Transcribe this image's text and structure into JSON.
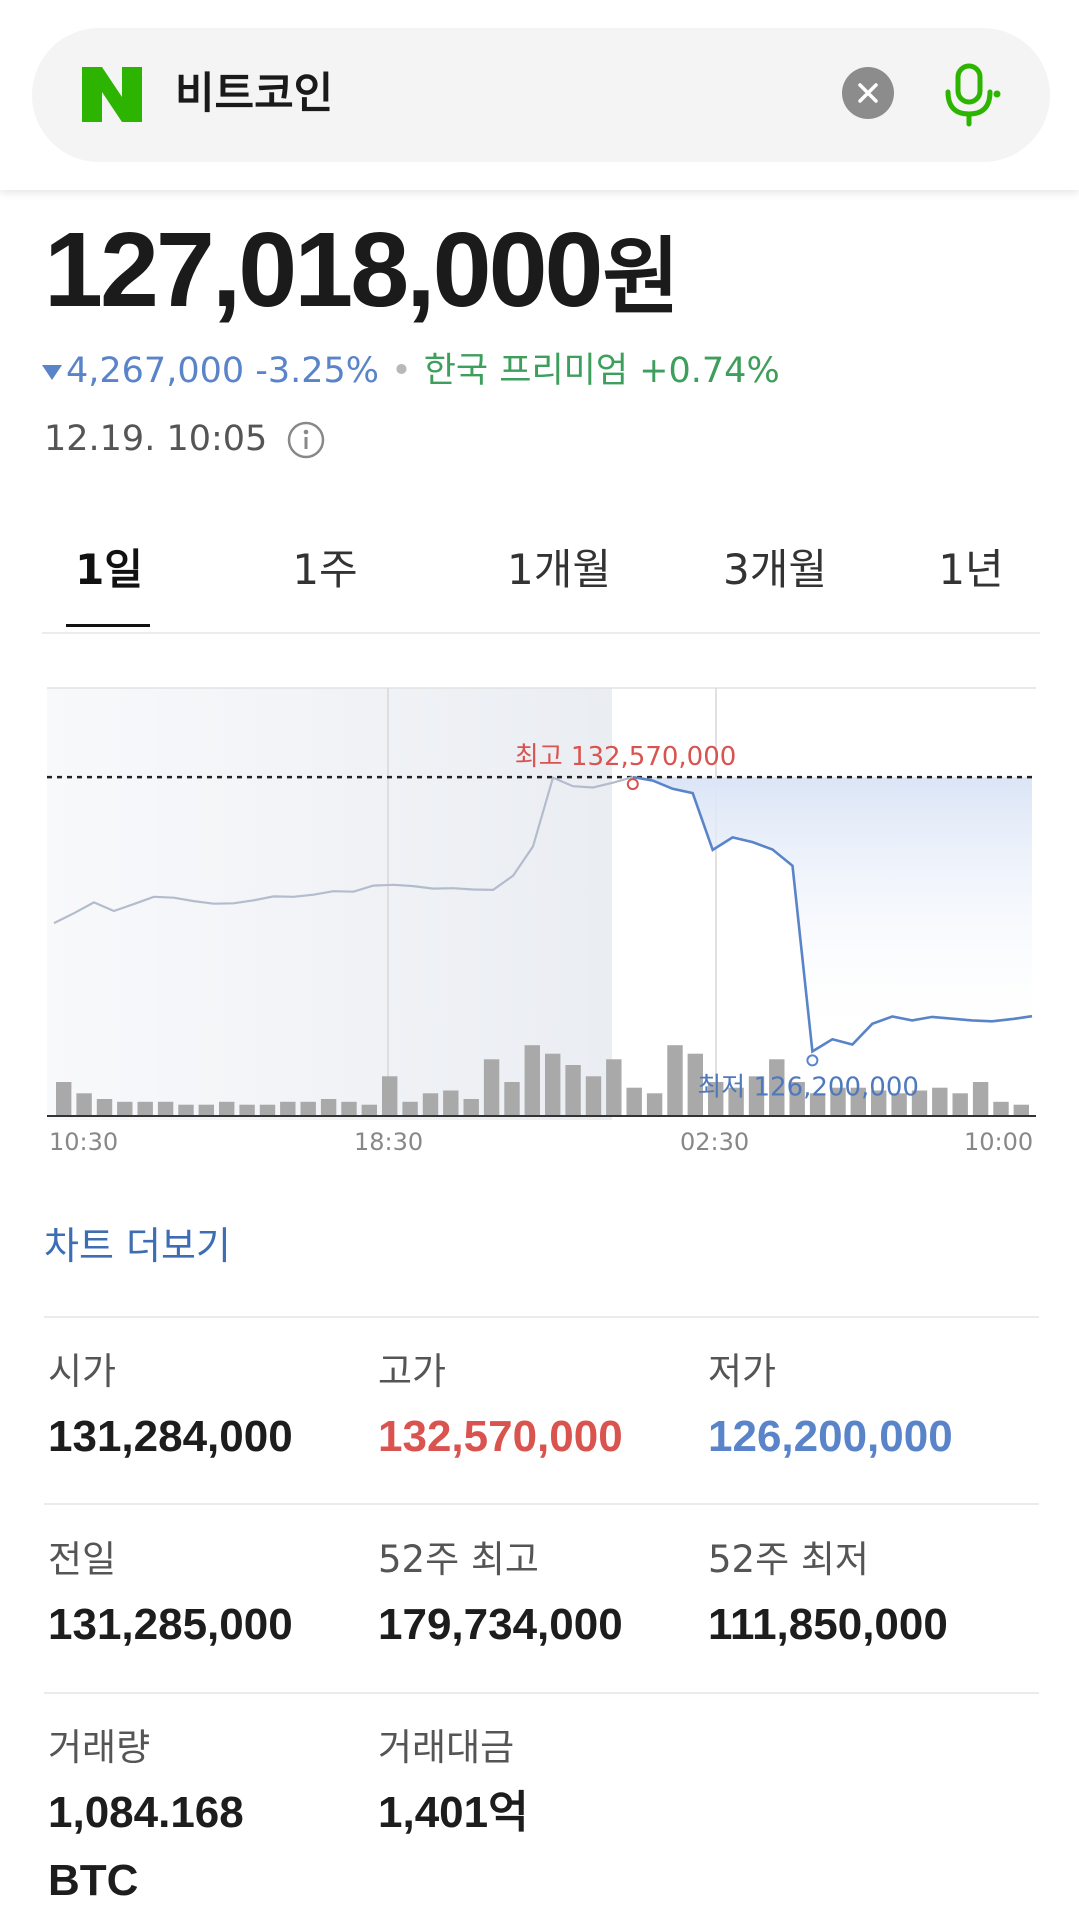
{
  "search": {
    "query": "비트코인"
  },
  "quote": {
    "price": "127,018,000",
    "unit": "원",
    "change": "4,267,000 -3.25%",
    "premium": "한국 프리미엄 +0.74%",
    "timestamp": "12.19. 10:05"
  },
  "tabs": [
    "1일",
    "1주",
    "1개월",
    "3개월",
    "1년"
  ],
  "active_tab": "1일",
  "colors": {
    "up": "#d9534f",
    "down": "#5a84c9",
    "premium": "#3e9e5c",
    "accent_green": "#2db400"
  },
  "chart_data": {
    "type": "line",
    "x_tick_labels": [
      "10:30",
      "18:30",
      "02:30",
      "10:00"
    ],
    "price_series": [
      {
        "x": 0,
        "y": 129180000
      },
      {
        "x": 1,
        "y": 129410000
      },
      {
        "x": 2,
        "y": 129660000
      },
      {
        "x": 3,
        "y": 129460000
      },
      {
        "x": 4,
        "y": 129620000
      },
      {
        "x": 5,
        "y": 129790000
      },
      {
        "x": 6,
        "y": 129770000
      },
      {
        "x": 7,
        "y": 129690000
      },
      {
        "x": 8,
        "y": 129630000
      },
      {
        "x": 9,
        "y": 129640000
      },
      {
        "x": 10,
        "y": 129710000
      },
      {
        "x": 11,
        "y": 129800000
      },
      {
        "x": 12,
        "y": 129790000
      },
      {
        "x": 13,
        "y": 129840000
      },
      {
        "x": 14,
        "y": 129920000
      },
      {
        "x": 15,
        "y": 129910000
      },
      {
        "x": 16,
        "y": 130050000
      },
      {
        "x": 17,
        "y": 130070000
      },
      {
        "x": 18,
        "y": 130040000
      },
      {
        "x": 19,
        "y": 129980000
      },
      {
        "x": 20,
        "y": 129990000
      },
      {
        "x": 21,
        "y": 129960000
      },
      {
        "x": 22,
        "y": 129950000
      },
      {
        "x": 23,
        "y": 130280000
      },
      {
        "x": 24,
        "y": 130960000
      },
      {
        "x": 25,
        "y": 132560000
      },
      {
        "x": 26,
        "y": 132360000
      },
      {
        "x": 27,
        "y": 132330000
      },
      {
        "x": 28,
        "y": 132440000
      },
      {
        "x": 29,
        "y": 132570000
      },
      {
        "x": 30,
        "y": 132490000
      },
      {
        "x": 31,
        "y": 132300000
      },
      {
        "x": 32,
        "y": 132200000
      },
      {
        "x": 33,
        "y": 130880000
      },
      {
        "x": 34,
        "y": 131170000
      },
      {
        "x": 35,
        "y": 131060000
      },
      {
        "x": 36,
        "y": 130890000
      },
      {
        "x": 37,
        "y": 130510000
      },
      {
        "x": 38,
        "y": 126200000
      },
      {
        "x": 39,
        "y": 126480000
      },
      {
        "x": 40,
        "y": 126360000
      },
      {
        "x": 41,
        "y": 126840000
      },
      {
        "x": 42,
        "y": 127010000
      },
      {
        "x": 43,
        "y": 126920000
      },
      {
        "x": 44,
        "y": 127000000
      },
      {
        "x": 45,
        "y": 126960000
      },
      {
        "x": 46,
        "y": 126920000
      },
      {
        "x": 47,
        "y": 126900000
      },
      {
        "x": 48,
        "y": 126950000
      },
      {
        "x": 49,
        "y": 127018000
      }
    ],
    "volume": [
      12,
      8,
      6,
      5,
      5,
      5,
      4,
      4,
      5,
      4,
      4,
      5,
      5,
      6,
      5,
      4,
      14,
      5,
      8,
      9,
      6,
      20,
      12,
      25,
      22,
      18,
      14,
      20,
      10,
      8,
      25,
      22,
      12,
      10,
      14,
      20,
      12,
      8,
      10,
      10,
      9,
      8,
      9,
      10,
      8,
      12,
      5,
      4
    ],
    "high_label": "최고 132,570,000",
    "low_label": "최저 126,200,000",
    "reference_line": 132570000
  },
  "more_chart": "차트 더보기",
  "stats": [
    {
      "label": "시가",
      "value": "131,284,000",
      "tone": "normal"
    },
    {
      "label": "고가",
      "value": "132,570,000",
      "tone": "red"
    },
    {
      "label": "저가",
      "value": "126,200,000",
      "tone": "blue"
    },
    {
      "label": "전일",
      "value": "131,285,000",
      "tone": "normal"
    },
    {
      "label": "52주 최고",
      "value": "179,734,000",
      "tone": "normal"
    },
    {
      "label": "52주 최저",
      "value": "111,850,000",
      "tone": "normal"
    },
    {
      "label": "거래량",
      "value": "1,084.168",
      "value2": "BTC",
      "tone": "normal"
    },
    {
      "label": "거래대금",
      "value": "1,401억",
      "tone": "normal"
    }
  ]
}
